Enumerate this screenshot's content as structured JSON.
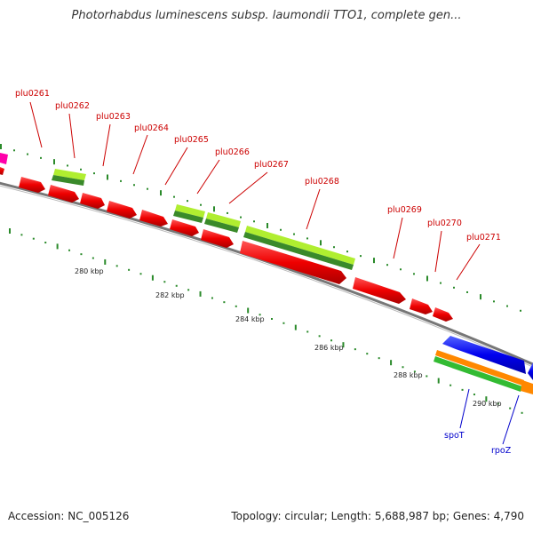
{
  "title": "Photorhabdus luminescens subsp. laumondii TTO1, complete gen...",
  "accession_text": "Accession: NC_005126",
  "summary_text": "Topology: circular; Length: 5,688,987 bp; Genes: 4,790",
  "scale_ticks": [
    "280 kbp",
    "282 kbp",
    "284 kbp",
    "286 kbp",
    "288 kbp",
    "290 kbp"
  ],
  "genes_forward": [
    "plu0261",
    "plu0262",
    "plu0263",
    "plu0264",
    "plu0265",
    "plu0266",
    "plu0267",
    "plu0268",
    "plu0269",
    "plu0270",
    "plu0271"
  ],
  "genes_reverse": [
    "spoT",
    "rpoZ"
  ],
  "colors": {
    "forward_gene": "#ff0000",
    "reverse_gene": "#0000ff",
    "forward_label": "#cc0000",
    "reverse_label": "#0000cc",
    "backbone": "#888888",
    "gc_track": "#2a8a2a",
    "feature_light_green": "#b0ee30",
    "feature_dark_green": "#3a8a2a",
    "feature_orange": "#ff8800",
    "feature_pink": "#ff00aa"
  }
}
